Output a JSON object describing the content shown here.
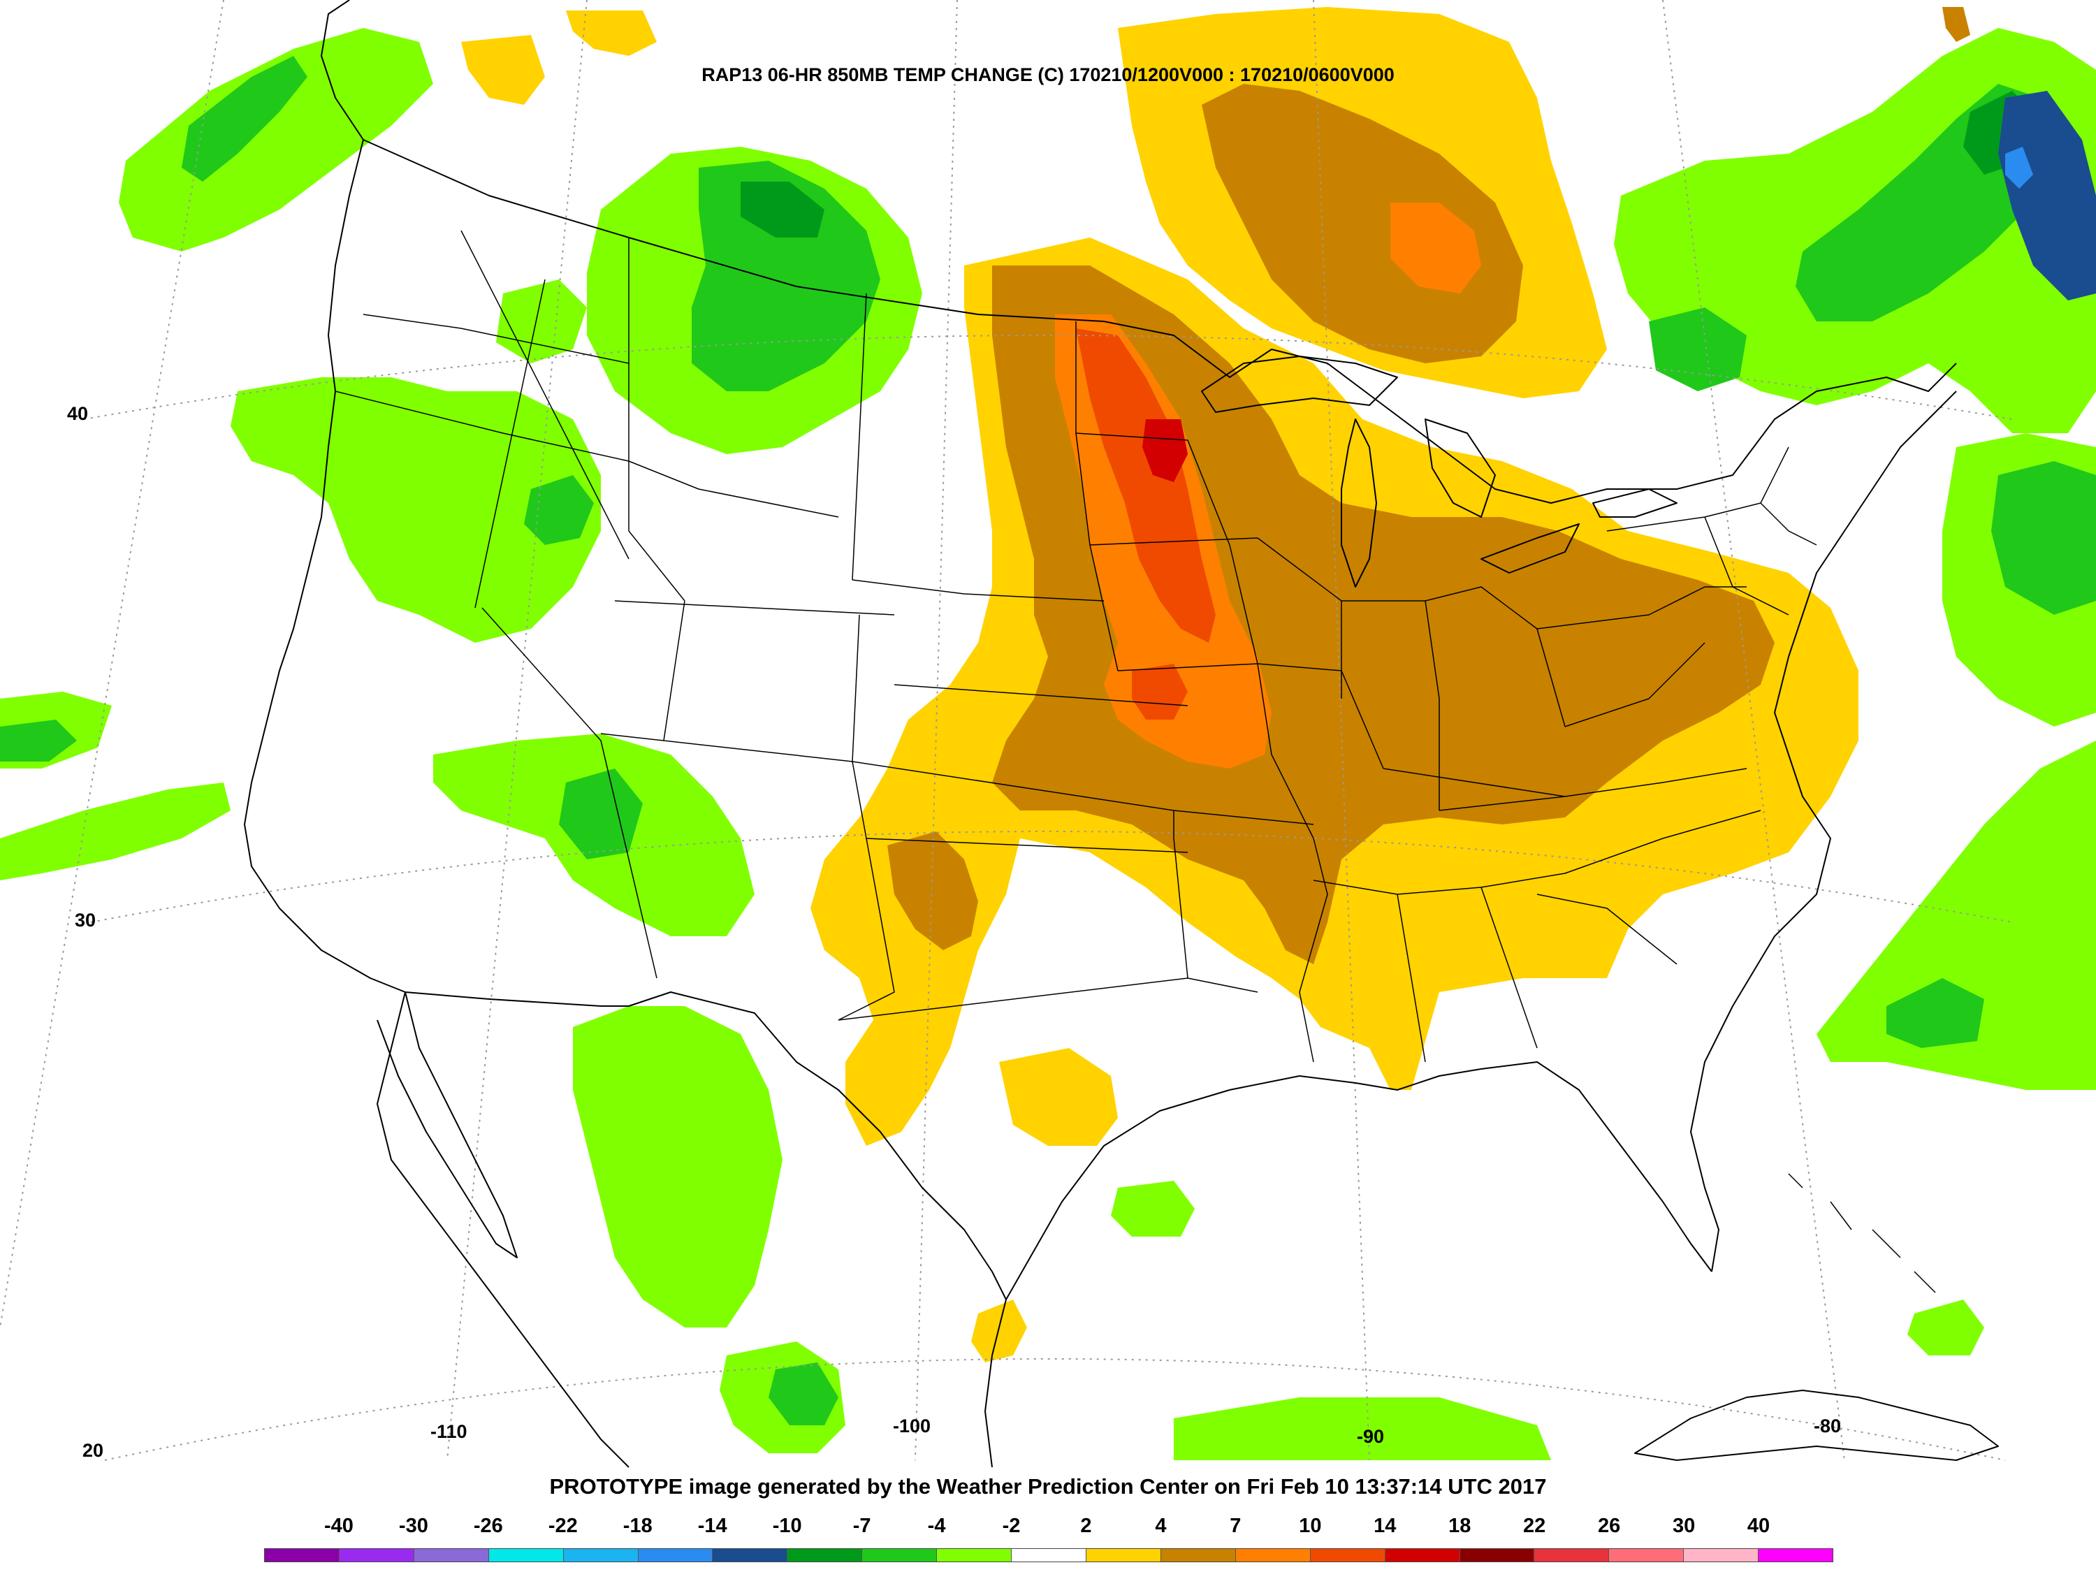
{
  "title": "RAP13 06-HR 850MB TEMP CHANGE (C) 170210/1200V000 : 170210/0600V000",
  "footer": "PROTOTYPE image generated by the Weather Prediction Center on Fri Feb 10 13:37:14 UTC 2017",
  "lat_labels": [
    "40",
    "30",
    "20"
  ],
  "lon_labels": [
    "-110",
    "-100",
    "-90",
    "-80"
  ],
  "colorbar": {
    "labels": [
      "-40",
      "-30",
      "-26",
      "-22",
      "-18",
      "-14",
      "-10",
      "-7",
      "-4",
      "-2",
      "2",
      "4",
      "7",
      "10",
      "14",
      "18",
      "22",
      "26",
      "30",
      "40"
    ],
    "colors": [
      "#8b00a8",
      "#9a2af0",
      "#8a6ad8",
      "#00e8e8",
      "#1ab4f0",
      "#2a8cf0",
      "#1a4c90",
      "#009a1a",
      "#20c81a",
      "#80ff00",
      "#ffffff",
      "#ffd200",
      "#c88200",
      "#ff8000",
      "#f04a00",
      "#d20000",
      "#8a0000",
      "#e8323c",
      "#ff6e78",
      "#ffb4c8",
      "#ff00ff"
    ]
  },
  "colors": {
    "coastline": "#000000",
    "background": "#ffffff"
  }
}
